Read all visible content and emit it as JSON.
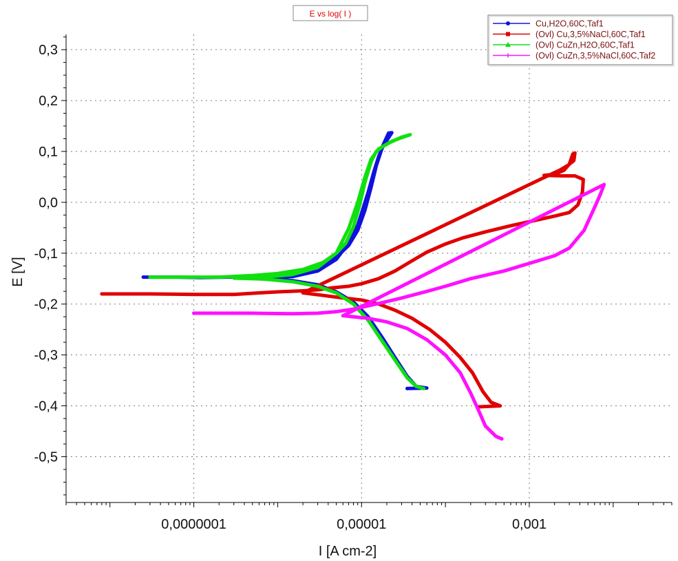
{
  "chart_data": {
    "type": "line",
    "title": "E vs log( I )",
    "xlabel": "I [A cm-2]",
    "ylabel": "E [V]",
    "x_scale": "log",
    "xlim": [
      3e-09,
      0.05
    ],
    "ylim": [
      -0.59,
      0.33
    ],
    "x_ticks": [
      1e-07,
      1e-05,
      0.001
    ],
    "x_tick_labels": [
      "0,0000001",
      "0,00001",
      "0,001"
    ],
    "y_ticks": [
      0.3,
      0.2,
      0.1,
      0.0,
      -0.1,
      -0.2,
      -0.3,
      -0.4,
      -0.5
    ],
    "y_tick_labels": [
      "0,3",
      "0,2",
      "0,1",
      "0,0",
      "-0,1",
      "-0,2",
      "-0,3",
      "-0,4",
      "-0,5"
    ],
    "grid": true,
    "legend_position": "top-right",
    "series": [
      {
        "name": "Cu,H2O,60C,Taf1",
        "color": "#1010e0",
        "marker": "circle",
        "points": [
          [
            2.5e-08,
            -0.147
          ],
          [
            6e-08,
            -0.147
          ],
          [
            1.2e-07,
            -0.148
          ],
          [
            2.5e-07,
            -0.147
          ],
          [
            5e-07,
            -0.145
          ],
          [
            1e-06,
            -0.142
          ],
          [
            2e-06,
            -0.136
          ],
          [
            3.5e-06,
            -0.124
          ],
          [
            5e-06,
            -0.108
          ],
          [
            7e-06,
            -0.085
          ],
          [
            9e-06,
            -0.055
          ],
          [
            1.1e-05,
            -0.015
          ],
          [
            1.3e-05,
            0.03
          ],
          [
            1.5e-05,
            0.072
          ],
          [
            1.8e-05,
            0.112
          ],
          [
            2.1e-05,
            0.136
          ],
          [
            2.3e-05,
            0.137
          ],
          [
            1.8e-05,
            0.11
          ],
          [
            1.6e-05,
            0.09
          ],
          [
            1.4e-05,
            0.06
          ],
          [
            1.2e-05,
            0.02
          ],
          [
            1.05e-05,
            -0.01
          ],
          [
            9e-06,
            -0.045
          ],
          [
            7e-06,
            -0.08
          ],
          [
            5e-06,
            -0.112
          ],
          [
            3e-06,
            -0.135
          ],
          [
            1.5e-06,
            -0.146
          ],
          [
            7e-07,
            -0.149
          ],
          [
            3e-07,
            -0.148
          ],
          [
            7e-07,
            -0.15
          ],
          [
            1.5e-06,
            -0.154
          ],
          [
            3e-06,
            -0.162
          ],
          [
            5e-06,
            -0.176
          ],
          [
            8e-06,
            -0.196
          ],
          [
            1.2e-05,
            -0.225
          ],
          [
            1.8e-05,
            -0.268
          ],
          [
            2.5e-05,
            -0.305
          ],
          [
            3.5e-05,
            -0.342
          ],
          [
            4.5e-05,
            -0.362
          ],
          [
            6e-05,
            -0.365
          ],
          [
            3.5e-05,
            -0.366
          ]
        ]
      },
      {
        "name": "(Ovl) Cu,3,5%NaCl,60C,Taf1",
        "color": "#e00000",
        "marker": "square",
        "points": [
          [
            8e-09,
            -0.18
          ],
          [
            3e-08,
            -0.18
          ],
          [
            1e-07,
            -0.181
          ],
          [
            3e-07,
            -0.181
          ],
          [
            6e-07,
            -0.178
          ],
          [
            1e-06,
            -0.176
          ],
          [
            2e-06,
            -0.174
          ],
          [
            3e-06,
            -0.172
          ],
          [
            4.5e-06,
            -0.168
          ],
          [
            7e-06,
            -0.165
          ],
          [
            1e-05,
            -0.16
          ],
          [
            1.6e-05,
            -0.15
          ],
          [
            2.5e-05,
            -0.135
          ],
          [
            4e-05,
            -0.115
          ],
          [
            6e-05,
            -0.098
          ],
          [
            0.0001,
            -0.082
          ],
          [
            0.00016,
            -0.07
          ],
          [
            0.0003,
            -0.058
          ],
          [
            0.0006,
            -0.046
          ],
          [
            0.001,
            -0.038
          ],
          [
            0.002,
            -0.027
          ],
          [
            0.003,
            -0.02
          ],
          [
            0.0038,
            -0.005
          ],
          [
            0.0043,
            0.02
          ],
          [
            0.0044,
            0.045
          ],
          [
            0.0035,
            0.052
          ],
          [
            0.0025,
            0.052
          ],
          [
            0.0015,
            0.053
          ],
          [
            0.002,
            0.055
          ],
          [
            0.0026,
            0.063
          ],
          [
            0.003,
            0.075
          ],
          [
            0.0033,
            0.095
          ],
          [
            0.0035,
            0.097
          ],
          [
            0.0034,
            0.082
          ],
          [
            0.0029,
            0.073
          ],
          [
            0.0023,
            0.063
          ],
          [
            0.0018,
            0.055
          ],
          [
            2e-06,
            -0.178
          ],
          [
            3.5e-06,
            -0.183
          ],
          [
            6e-06,
            -0.188
          ],
          [
            1e-05,
            -0.192
          ],
          [
            1.6e-05,
            -0.2
          ],
          [
            2.5e-05,
            -0.212
          ],
          [
            4e-05,
            -0.228
          ],
          [
            6.5e-05,
            -0.25
          ],
          [
            0.0001,
            -0.275
          ],
          [
            0.00015,
            -0.305
          ],
          [
            0.00021,
            -0.335
          ],
          [
            0.00028,
            -0.372
          ],
          [
            0.00035,
            -0.393
          ],
          [
            0.00045,
            -0.4
          ],
          [
            0.00025,
            -0.402
          ]
        ]
      },
      {
        "name": "(Ovl) CuZn,H2O,60C,Taf1",
        "color": "#10e010",
        "marker": "triangle",
        "points": [
          [
            3e-08,
            -0.147
          ],
          [
            8e-08,
            -0.147
          ],
          [
            2e-07,
            -0.147
          ],
          [
            5e-07,
            -0.144
          ],
          [
            1e-06,
            -0.14
          ],
          [
            2e-06,
            -0.132
          ],
          [
            3.5e-06,
            -0.118
          ],
          [
            5e-06,
            -0.1
          ],
          [
            6.5e-06,
            -0.08
          ],
          [
            8e-06,
            -0.048
          ],
          [
            9.5e-06,
            -0.005
          ],
          [
            1.1e-05,
            0.04
          ],
          [
            1.3e-05,
            0.08
          ],
          [
            1.5e-05,
            0.1
          ],
          [
            1.8e-05,
            0.11
          ],
          [
            2.3e-05,
            0.12
          ],
          [
            3e-05,
            0.127
          ],
          [
            3.8e-05,
            0.133
          ],
          [
            3e-05,
            0.128
          ],
          [
            2.2e-05,
            0.118
          ],
          [
            1.6e-05,
            0.105
          ],
          [
            1.3e-05,
            0.085
          ],
          [
            1.1e-05,
            0.05
          ],
          [
            9e-06,
            0.0
          ],
          [
            7e-06,
            -0.052
          ],
          [
            5e-06,
            -0.1
          ],
          [
            3e-06,
            -0.128
          ],
          [
            1.5e-06,
            -0.142
          ],
          [
            6e-07,
            -0.148
          ],
          [
            3e-07,
            -0.149
          ],
          [
            7e-07,
            -0.151
          ],
          [
            1.5e-06,
            -0.156
          ],
          [
            3e-06,
            -0.165
          ],
          [
            5e-06,
            -0.178
          ],
          [
            8e-06,
            -0.2
          ],
          [
            1.2e-05,
            -0.232
          ],
          [
            1.8e-05,
            -0.275
          ],
          [
            2.5e-05,
            -0.31
          ],
          [
            3.5e-05,
            -0.345
          ],
          [
            4.5e-05,
            -0.362
          ],
          [
            5.5e-05,
            -0.366
          ]
        ]
      },
      {
        "name": "(Ovl) CuZn,3,5%NaCl,60C,Taf2",
        "color": "#ff10ff",
        "marker": "plus",
        "points": [
          [
            1e-07,
            -0.218
          ],
          [
            5e-07,
            -0.218
          ],
          [
            1.5e-06,
            -0.219
          ],
          [
            3e-06,
            -0.218
          ],
          [
            5e-06,
            -0.215
          ],
          [
            8e-06,
            -0.21
          ],
          [
            1.5e-05,
            -0.2
          ],
          [
            3e-05,
            -0.188
          ],
          [
            6e-05,
            -0.175
          ],
          [
            0.0001,
            -0.165
          ],
          [
            0.0002,
            -0.15
          ],
          [
            0.0005,
            -0.135
          ],
          [
            0.001,
            -0.12
          ],
          [
            0.002,
            -0.105
          ],
          [
            0.003,
            -0.09
          ],
          [
            0.0045,
            -0.055
          ],
          [
            0.006,
            -0.01
          ],
          [
            0.007,
            0.015
          ],
          [
            0.0078,
            0.035
          ],
          [
            6e-06,
            -0.223
          ],
          [
            1.2e-05,
            -0.228
          ],
          [
            2e-05,
            -0.235
          ],
          [
            3.5e-05,
            -0.248
          ],
          [
            6e-05,
            -0.27
          ],
          [
            0.0001,
            -0.3
          ],
          [
            0.00015,
            -0.335
          ],
          [
            0.0002,
            -0.375
          ],
          [
            0.00025,
            -0.41
          ],
          [
            0.0003,
            -0.44
          ],
          [
            0.0004,
            -0.46
          ],
          [
            0.00047,
            -0.465
          ]
        ]
      }
    ]
  }
}
